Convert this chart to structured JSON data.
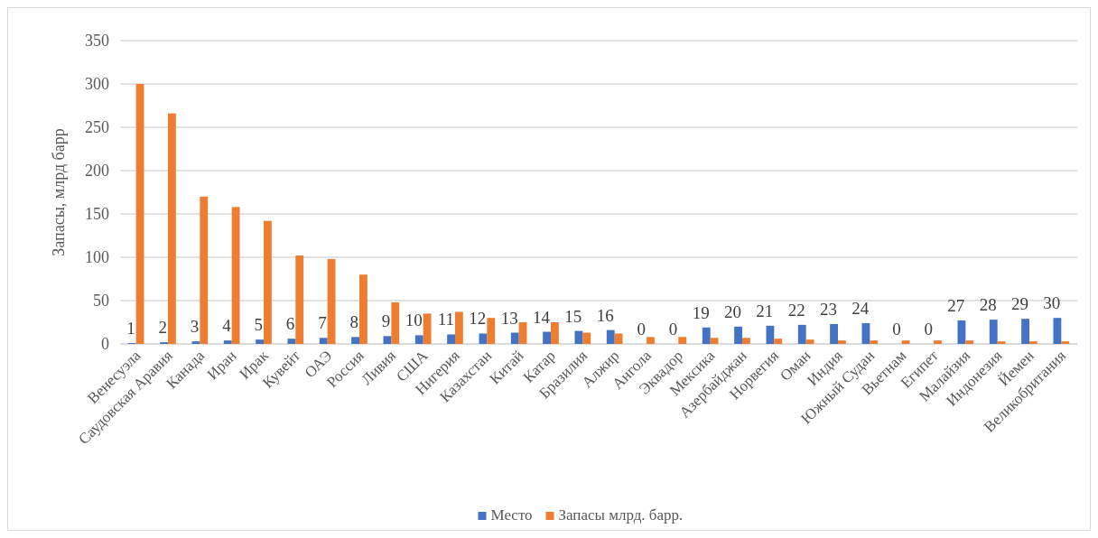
{
  "chart_data": {
    "type": "bar",
    "ylabel": "Запасы, млрд барр",
    "categories": [
      "Венесуэла",
      "Саудовская Аравия",
      "Канада",
      "Иран",
      "Ирак",
      "Кувейт",
      "ОАЭ",
      "Россия",
      "Ливия",
      "США",
      "Нигерия",
      "Казахстан",
      "Китай",
      "Катар",
      "Бразилия",
      "Алжир",
      "Ангола",
      "Эквадор",
      "Мексика",
      "Азербайджан",
      "Норвегия",
      "Оман",
      "Индия",
      "Южный Судан",
      "Вьетнам",
      "Египет",
      "Малайзия",
      "Индонезия",
      "Йемен",
      "Великобритания"
    ],
    "series": [
      {
        "name": "Место",
        "color": "#4472c4",
        "values": [
          1,
          2,
          3,
          4,
          5,
          6,
          7,
          8,
          9,
          10,
          11,
          12,
          13,
          14,
          15,
          16,
          0,
          0,
          19,
          20,
          21,
          22,
          23,
          24,
          0,
          0,
          27,
          28,
          29,
          30
        ],
        "value_labels": [
          "1",
          "2",
          "3",
          "4",
          "5",
          "6",
          "7",
          "8",
          "9",
          "10",
          "11",
          "12",
          "13",
          "14",
          "15",
          "16",
          "0",
          "0",
          "19",
          "20",
          "21",
          "22",
          "23",
          "24",
          "0",
          "0",
          "27",
          "28",
          "29",
          "30"
        ]
      },
      {
        "name": "Запасы млрд. барр.",
        "color": "#ed7d31",
        "values": [
          300,
          266,
          170,
          158,
          142,
          102,
          98,
          80,
          48,
          35,
          37,
          30,
          25,
          25,
          13,
          12,
          8,
          8,
          7,
          7,
          6,
          5,
          4,
          4,
          4,
          4,
          4,
          3,
          3,
          3
        ]
      }
    ],
    "ylim": [
      0,
      350
    ],
    "yticks": [
      0,
      50,
      100,
      150,
      200,
      250,
      300,
      350
    ],
    "grid": "y",
    "legend": "bottom"
  }
}
